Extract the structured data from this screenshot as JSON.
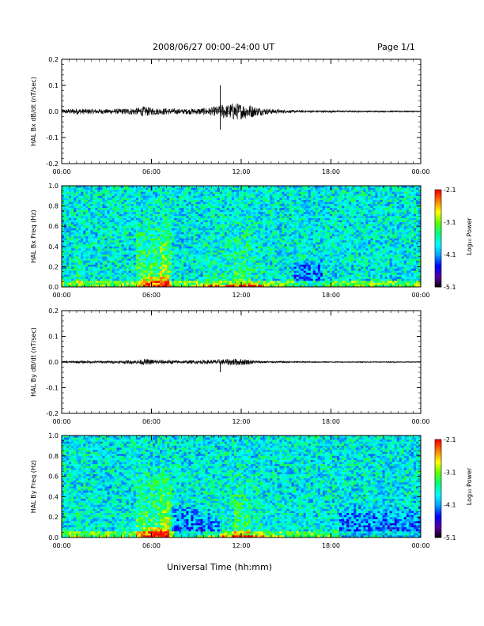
{
  "header": {
    "title": "2008/06/27  00:00–24:00 UT",
    "page": "Page 1/1"
  },
  "xlabel": "Universal Time (hh:mm)",
  "colorbar": {
    "label": "Log₁₀ Power",
    "ticks": [
      "-2.1",
      "-3.1",
      "-4.1",
      "-5.1"
    ],
    "colors": [
      "#000000",
      "#5a00a0",
      "#0000ff",
      "#00a0ff",
      "#00ffff",
      "#00ff80",
      "#60ff00",
      "#ffff00",
      "#ff8000",
      "#ff0000"
    ]
  },
  "chart_data": [
    {
      "type": "line",
      "ylabel": "HAL Bx dB/dt (nT/sec)",
      "ylim": [
        -0.2,
        0.2
      ],
      "yticks": [
        "0.2",
        "0.1",
        "0.0",
        "-0.1",
        "-0.2"
      ],
      "xticks": [
        "00:00",
        "06:00",
        "12:00",
        "18:00",
        "00:00"
      ],
      "xlim_hours": [
        0,
        24
      ],
      "envelope": {
        "hours": [
          0,
          0.5,
          1,
          2,
          3,
          4,
          5,
          5.5,
          6,
          6.5,
          7,
          8,
          9,
          10,
          10.5,
          10.8,
          11,
          11.5,
          12,
          12.5,
          13,
          14,
          15,
          16,
          18,
          20,
          22,
          24
        ],
        "amplitude": [
          0.008,
          0.01,
          0.012,
          0.01,
          0.009,
          0.011,
          0.014,
          0.02,
          0.015,
          0.012,
          0.013,
          0.01,
          0.012,
          0.016,
          0.022,
          0.03,
          0.025,
          0.035,
          0.03,
          0.028,
          0.018,
          0.01,
          0.006,
          0.005,
          0.004,
          0.003,
          0.003,
          0.003
        ]
      },
      "spikes": [
        {
          "hour": 10.6,
          "value": 0.1
        },
        {
          "hour": 10.6,
          "value": -0.07
        }
      ]
    },
    {
      "type": "heatmap",
      "ylabel": "HAL Bx Freq (Hz)",
      "ylim": [
        0,
        1.0
      ],
      "yticks": [
        "1.0",
        "0.8",
        "0.6",
        "0.4",
        "0.2",
        "0.0"
      ],
      "xticks": [
        "00:00",
        "06:00",
        "12:00",
        "18:00",
        "00:00"
      ],
      "zlim": [
        -5.1,
        -2.1
      ],
      "zlabel": "Log₁₀ Power"
    },
    {
      "type": "line",
      "ylabel": "HAL By dB/dt (nT/sec)",
      "ylim": [
        -0.2,
        0.2
      ],
      "yticks": [
        "0.2",
        "0.1",
        "0.0",
        "-0.1",
        "-0.2"
      ],
      "xticks": [
        "00:00",
        "06:00",
        "12:00",
        "18:00",
        "00:00"
      ],
      "xlim_hours": [
        0,
        24
      ],
      "envelope": {
        "hours": [
          0,
          1,
          2,
          3,
          4,
          5,
          5.5,
          6,
          7,
          8,
          9,
          10,
          10.5,
          11,
          11.5,
          12,
          12.5,
          13,
          14,
          16,
          18,
          20,
          22,
          24
        ],
        "amplitude": [
          0.004,
          0.005,
          0.005,
          0.005,
          0.006,
          0.008,
          0.012,
          0.01,
          0.008,
          0.006,
          0.007,
          0.008,
          0.01,
          0.012,
          0.014,
          0.013,
          0.01,
          0.006,
          0.004,
          0.003,
          0.002,
          0.002,
          0.002,
          0.002
        ]
      },
      "spikes": [
        {
          "hour": 10.6,
          "value": -0.04
        }
      ]
    },
    {
      "type": "heatmap",
      "ylabel": "HAL By Freq (Hz)",
      "ylim": [
        0,
        1.0
      ],
      "yticks": [
        "1.0",
        "0.8",
        "0.6",
        "0.4",
        "0.2",
        "0.0"
      ],
      "xticks": [
        "00:00",
        "06:00",
        "12:00",
        "18:00",
        "00:00"
      ],
      "zlim": [
        -5.1,
        -2.1
      ],
      "zlabel": "Log₁₀ Power"
    }
  ]
}
